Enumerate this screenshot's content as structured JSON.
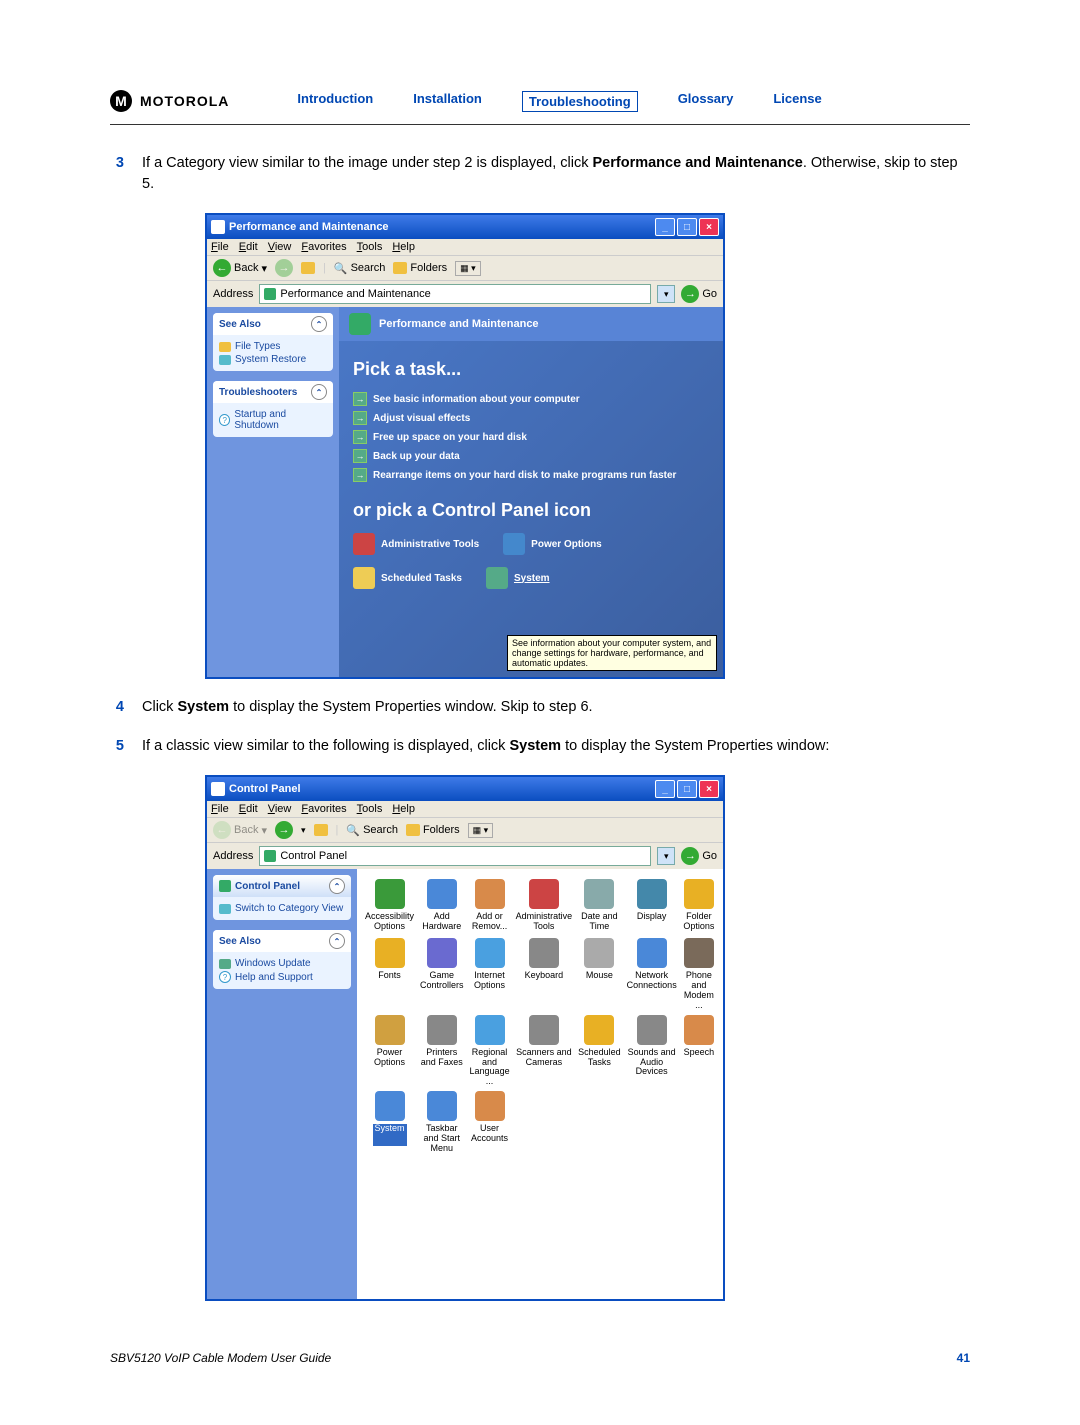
{
  "brand": "MOTOROLA",
  "nav": {
    "introduction": "Introduction",
    "installation": "Installation",
    "troubleshooting": "Troubleshooting",
    "glossary": "Glossary",
    "license": "License"
  },
  "steps": {
    "s3": {
      "num": "3",
      "pre": "If a Category view similar to the image under step 2 is displayed, click ",
      "bold": "Performance and Maintenance",
      "post": ". Otherwise, skip to step 5."
    },
    "s4": {
      "num": "4",
      "pre": "Click ",
      "bold": "System",
      "post": " to display the System Properties window. Skip to step 6."
    },
    "s5": {
      "num": "5",
      "pre": "If a classic view similar to the following is displayed, click ",
      "bold": "System",
      "post": " to display the System Properties window:"
    }
  },
  "win1": {
    "title": "Performance and Maintenance",
    "menu": {
      "file": "File",
      "edit": "Edit",
      "view": "View",
      "fav": "Favorites",
      "tools": "Tools",
      "help": "Help"
    },
    "toolbar": {
      "back": "Back",
      "search": "Search",
      "folders": "Folders"
    },
    "addr": {
      "label": "Address",
      "val": "Performance and Maintenance",
      "go": "Go"
    },
    "side": {
      "seeAlso": "See Also",
      "fileTypes": "File Types",
      "sysRestore": "System Restore",
      "trouble": "Troubleshooters",
      "startup": "Startup and Shutdown"
    },
    "headerText": "Performance and Maintenance",
    "pick": "Pick a task...",
    "tasks": {
      "t1": "See basic information about your computer",
      "t2": "Adjust visual effects",
      "t3": "Free up space on your hard disk",
      "t4": "Back up your data",
      "t5": "Rearrange items on your hard disk to make programs run faster"
    },
    "orpick": "or pick a Control Panel icon",
    "cp": {
      "admin": "Administrative Tools",
      "power": "Power Options",
      "sched": "Scheduled Tasks",
      "system": "System"
    },
    "tooltip": "See information about your computer system, and change settings for hardware, performance, and automatic updates."
  },
  "win2": {
    "title": "Control Panel",
    "menu": {
      "file": "File",
      "edit": "Edit",
      "view": "View",
      "fav": "Favorites",
      "tools": "Tools",
      "help": "Help"
    },
    "toolbar": {
      "back": "Back",
      "search": "Search",
      "folders": "Folders"
    },
    "addr": {
      "label": "Address",
      "val": "Control Panel",
      "go": "Go"
    },
    "side": {
      "cp": "Control Panel",
      "switch": "Switch to Category View",
      "seeAlso": "See Also",
      "wu": "Windows Update",
      "help": "Help and Support"
    },
    "icons": {
      "r": [
        [
          "Accessibility Options",
          "#3a9a3a"
        ],
        [
          "Add Hardware",
          "#4a88d8"
        ],
        [
          "Add or Remov...",
          "#d88a4a"
        ],
        [
          "Administrative Tools",
          "#c44"
        ],
        [
          "Date and Time",
          "#8aa"
        ],
        [
          "Display",
          "#48a"
        ],
        [
          "Folder Options",
          "#e8b024"
        ]
      ],
      "r2": [
        [
          "Fonts",
          "#e8b024"
        ],
        [
          "Game Controllers",
          "#6a6ad0"
        ],
        [
          "Internet Options",
          "#4aa0e0"
        ],
        [
          "Keyboard",
          "#888"
        ],
        [
          "Mouse",
          "#aaa"
        ],
        [
          "Network Connections",
          "#4a88d8"
        ],
        [
          "Phone and Modem ...",
          "#7a6a5a"
        ]
      ],
      "r3": [
        [
          "Power Options",
          "#d0a040"
        ],
        [
          "Printers and Faxes",
          "#888"
        ],
        [
          "Regional and Language ...",
          "#4aa0e0"
        ],
        [
          "Scanners and Cameras",
          "#888"
        ],
        [
          "Scheduled Tasks",
          "#e8b024"
        ],
        [
          "Sounds and Audio Devices",
          "#888"
        ],
        [
          "Speech",
          "#d88a4a"
        ]
      ],
      "r4": [
        [
          "System",
          "#4a88d8"
        ],
        [
          "Taskbar and Start Menu",
          "#4a88d8"
        ],
        [
          "User Accounts",
          "#d88a4a"
        ]
      ]
    }
  },
  "footer": {
    "guide": "SBV5120 VoIP Cable Modem User Guide",
    "page": "41"
  },
  "colors": {
    "link": "#0047b3"
  }
}
